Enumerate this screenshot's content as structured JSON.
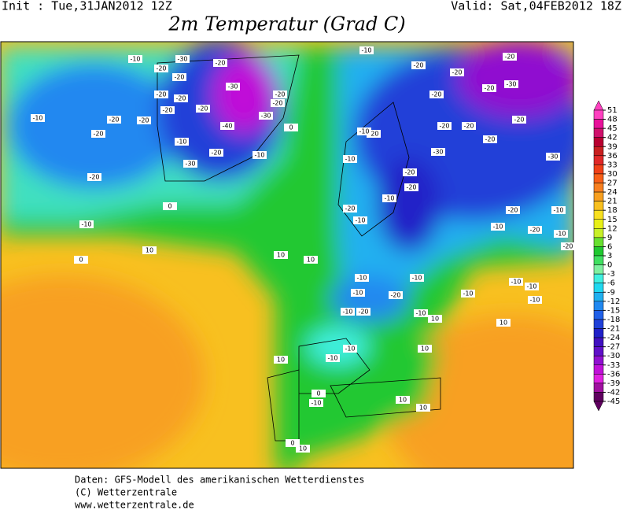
{
  "header": {
    "init": "Init : Tue,31JAN2012 12Z",
    "valid": "Valid: Sat,04FEB2012 18Z",
    "title": "2m Temperatur (Grad C)"
  },
  "legend": {
    "ticks": [
      51,
      48,
      45,
      42,
      39,
      36,
      33,
      30,
      27,
      24,
      21,
      18,
      15,
      12,
      9,
      6,
      3,
      0,
      -3,
      -6,
      -9,
      -12,
      -15,
      -18,
      -21,
      -24,
      -27,
      -30,
      -33,
      -36,
      -39,
      -42,
      -45
    ],
    "colors": [
      "#ff40c0",
      "#e8109a",
      "#d0106c",
      "#b80030",
      "#c82020",
      "#e02828",
      "#f04018",
      "#f86018",
      "#f88020",
      "#f8a020",
      "#f8c020",
      "#f8e020",
      "#e8f018",
      "#c8f028",
      "#68e030",
      "#20c830",
      "#40e060",
      "#80f0a0",
      "#40f0e0",
      "#20d8f0",
      "#20b0f0",
      "#2088f0",
      "#2060e8",
      "#2040d8",
      "#2020c8",
      "#4010c0",
      "#6010c8",
      "#9010d0",
      "#c010d8",
      "#e020e0",
      "#a010a0",
      "#600060"
    ]
  },
  "map_labels": [
    -10,
    -20,
    -30,
    -20,
    -30,
    -20,
    -20,
    -20,
    -20,
    -20,
    -20,
    -10,
    -20,
    -20,
    -10,
    -40,
    -20,
    -20,
    -30,
    -20,
    -10,
    -30,
    -20,
    -10,
    0,
    0,
    10,
    0,
    -10,
    -20,
    -20,
    -20,
    -20,
    -30,
    -20,
    -20,
    -20,
    -20,
    -30,
    -20,
    -30,
    -20,
    -20,
    -20,
    -10,
    -10,
    -10,
    -20,
    -10,
    -20,
    -10,
    -10,
    -20,
    -10,
    -20,
    10,
    10,
    -10,
    -10,
    -10,
    -20,
    -10,
    -10,
    -10,
    -10,
    -20,
    -10,
    -10,
    10,
    10,
    -10,
    -10,
    10,
    10,
    0,
    -10,
    10,
    10,
    10,
    0
  ],
  "footer": [
    "Daten: GFS-Modell des amerikanischen Wetterdienstes",
    "(C) Wetterzentrale",
    "www.wetterzentrale.de"
  ]
}
